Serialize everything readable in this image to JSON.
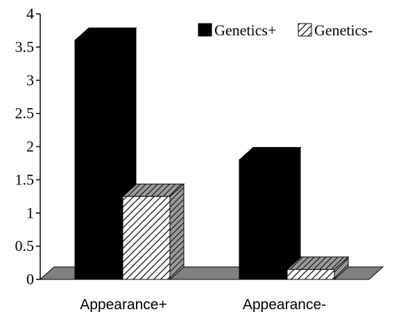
{
  "chart_data": {
    "type": "bar",
    "style": "3d-clustered-column",
    "categories": [
      "Appearance+",
      "Appearance-"
    ],
    "series": [
      {
        "name": "Genetics+",
        "values": [
          3.6,
          1.8
        ],
        "fill": "solid",
        "color": "#000000"
      },
      {
        "name": "Genetics-",
        "values": [
          1.25,
          0.15
        ],
        "fill": "hatched",
        "color": "#ffffff"
      }
    ],
    "y_ticks": [
      "0",
      "0.5",
      "1",
      "1.5",
      "2",
      "2.5",
      "3",
      "3.5",
      "4"
    ],
    "ylim": [
      0,
      4
    ],
    "legend_position": "top-right",
    "grid": false,
    "floor_color": "#808080",
    "side_shade_color": "#808080"
  }
}
